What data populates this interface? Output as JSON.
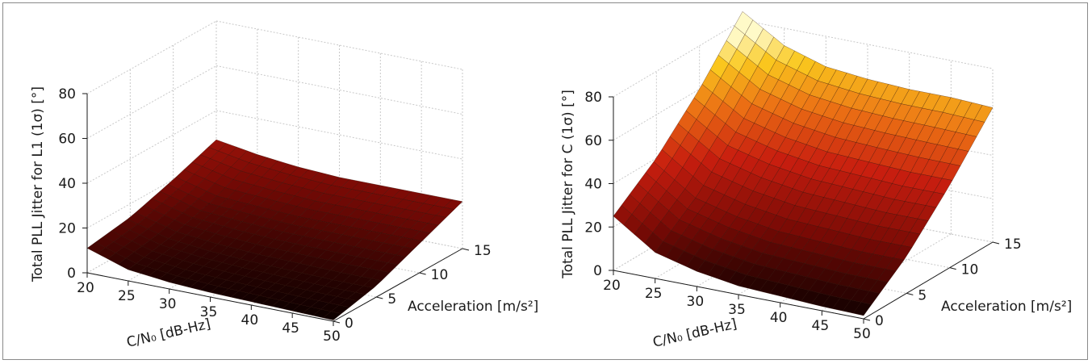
{
  "colors": {
    "frame": "#8a8a8a",
    "grid": "#c9c9c9",
    "text": "#1a1a1a"
  },
  "colormap": "hot",
  "chart_data": [
    {
      "type": "surface",
      "grid": true,
      "ylabel": "Total PLL Jitter for L1 (1σ) [°]",
      "xlabel": "C/N₀ [dB-Hz]",
      "depthlabel": "Acceleration [m/s²]",
      "xlim": [
        20,
        50
      ],
      "depthlim": [
        0,
        15
      ],
      "zlim": [
        0,
        80
      ],
      "xticks": [
        "20",
        "25",
        "30",
        "35",
        "40",
        "45",
        "50"
      ],
      "depthticks": [
        "0",
        "5",
        "10",
        "15"
      ],
      "zticks": [
        "0",
        "20",
        "40",
        "60",
        "80"
      ],
      "x": [
        20,
        25,
        30,
        35,
        40,
        45,
        50
      ],
      "depth": [
        0,
        5,
        10,
        15
      ],
      "z": [
        [
          11,
          5,
          3,
          2,
          1.5,
          1,
          0.5
        ],
        [
          14,
          9,
          7,
          6,
          5.5,
          5,
          5
        ],
        [
          20,
          15,
          14,
          13,
          13,
          13,
          13
        ],
        [
          27,
          24,
          22,
          21,
          21,
          21,
          21
        ]
      ]
    },
    {
      "type": "surface",
      "grid": true,
      "ylabel": "Total PLL Jitter for C (1σ) [°]",
      "xlabel": "C/N₀ [dB-Hz]",
      "depthlabel": "Acceleration [m/s²]",
      "xlim": [
        20,
        50
      ],
      "depthlim": [
        0,
        15
      ],
      "zlim": [
        0,
        80
      ],
      "xticks": [
        "20",
        "25",
        "30",
        "35",
        "40",
        "45",
        "50"
      ],
      "depthticks": [
        "0",
        "5",
        "10",
        "15"
      ],
      "zticks": [
        "0",
        "20",
        "40",
        "60",
        "80"
      ],
      "x": [
        20,
        25,
        30,
        35,
        40,
        45,
        50
      ],
      "depth": [
        0,
        5,
        10,
        15
      ],
      "z": [
        [
          25,
          12,
          7,
          4,
          3,
          2,
          1.5
        ],
        [
          40,
          27,
          22,
          19,
          18,
          17,
          17
        ],
        [
          60,
          48,
          43,
          40,
          39,
          38,
          38
        ],
        [
          84,
          72,
          66,
          64,
          63,
          63,
          62
        ]
      ]
    }
  ]
}
